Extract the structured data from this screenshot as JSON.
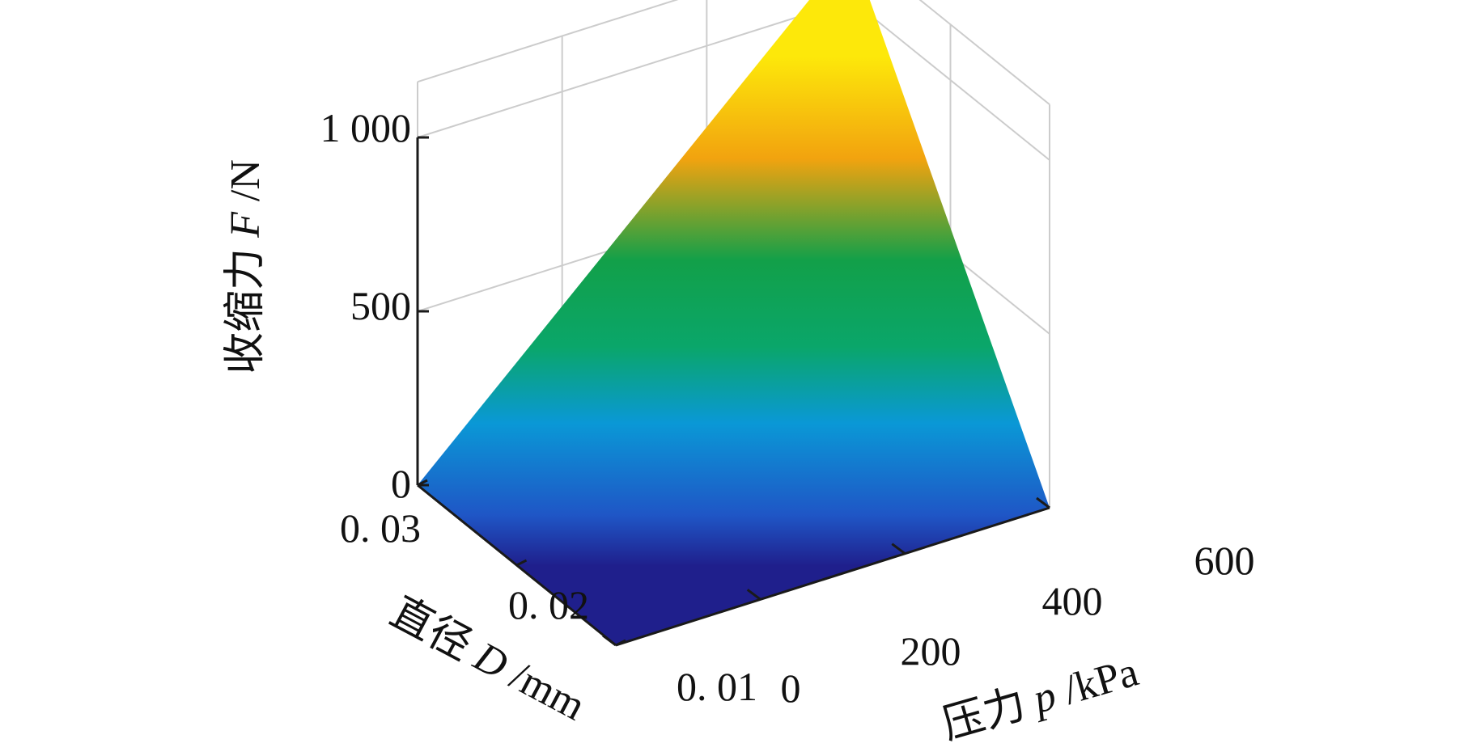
{
  "chart_data": {
    "type": "surface3d",
    "title": "",
    "z_axis": {
      "title_prefix": "收缩力 ",
      "title_var": "F",
      "title_unit": " /N",
      "ticks": [
        0,
        500,
        1000
      ],
      "tick_labels": [
        "0",
        "500",
        "1 000"
      ],
      "range": [
        0,
        1000
      ]
    },
    "x_axis": {
      "title_prefix": "直径 ",
      "title_var": "D",
      "title_unit": " /mm",
      "ticks": [
        0.01,
        0.02,
        0.03
      ],
      "tick_labels": [
        "0. 01",
        "0. 02",
        "0. 03"
      ],
      "range": [
        0.01,
        0.03
      ]
    },
    "y_axis": {
      "title_prefix": "压力 ",
      "title_var": "p",
      "title_unit": " /kPa",
      "ticks": [
        0,
        200,
        400,
        600
      ],
      "tick_labels": [
        "0",
        "200",
        "400",
        "600"
      ],
      "range": [
        0,
        600
      ]
    },
    "surface_corners": [
      {
        "D": 0.01,
        "p": 0,
        "F": 0
      },
      {
        "D": 0.03,
        "p": 0,
        "F": 0
      },
      {
        "D": 0.01,
        "p": 600,
        "F": 0
      },
      {
        "D": 0.03,
        "p": 600,
        "F": 1150
      }
    ],
    "colormap": [
      "#1f1f8c",
      "#1f56c6",
      "#0a98d6",
      "#0aa66a",
      "#12a049",
      "#f2a30f",
      "#fde80a"
    ],
    "grid": true
  }
}
